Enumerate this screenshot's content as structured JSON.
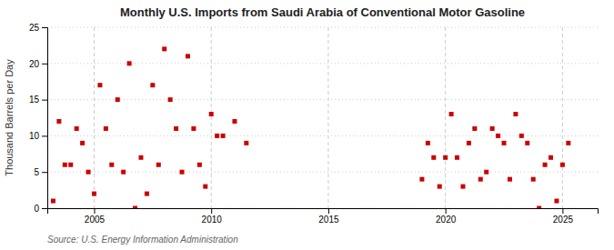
{
  "chart_data": {
    "type": "scatter",
    "title": "Monthly U.S. Imports from Saudi Arabia of Conventional Motor Gasoline",
    "ylabel": "Thousand Barrels per Day",
    "source": "Source: U.S. Energy Information Administration",
    "color": "#cc0000",
    "marker": "square",
    "grid": true,
    "xlim": [
      2003.0,
      2026.5
    ],
    "ylim": [
      0,
      25
    ],
    "xticks": [
      2005,
      2010,
      2015,
      2020,
      2025
    ],
    "yticks": [
      0,
      5,
      10,
      15,
      20,
      25
    ],
    "x": [
      2003.25,
      2003.5,
      2003.75,
      2004.0,
      2004.25,
      2004.5,
      2004.75,
      2005.0,
      2005.25,
      2005.5,
      2005.75,
      2006.0,
      2006.25,
      2006.5,
      2006.75,
      2007.0,
      2007.25,
      2007.5,
      2007.75,
      2008.0,
      2008.25,
      2008.5,
      2008.75,
      2009.0,
      2009.25,
      2009.5,
      2009.75,
      2010.0,
      2010.25,
      2010.5,
      2011.0,
      2011.5,
      2019.0,
      2019.25,
      2019.5,
      2019.75,
      2020.0,
      2020.25,
      2020.5,
      2020.75,
      2021.0,
      2021.25,
      2021.5,
      2021.75,
      2022.0,
      2022.25,
      2022.5,
      2022.75,
      2023.0,
      2023.25,
      2023.5,
      2023.75,
      2024.0,
      2024.25,
      2024.5,
      2024.75,
      2025.0,
      2025.25
    ],
    "values": [
      1,
      12,
      6,
      6,
      11,
      9,
      5,
      2,
      17,
      11,
      6,
      15,
      5,
      20,
      0,
      7,
      2,
      17,
      6,
      22,
      15,
      11,
      5,
      21,
      11,
      6,
      3,
      13,
      10,
      10,
      12,
      9,
      4,
      9,
      7,
      3,
      7,
      13,
      7,
      3,
      9,
      11,
      4,
      5,
      11,
      10,
      9,
      4,
      13,
      10,
      9,
      4,
      0,
      6,
      7,
      1,
      6,
      9
    ]
  }
}
